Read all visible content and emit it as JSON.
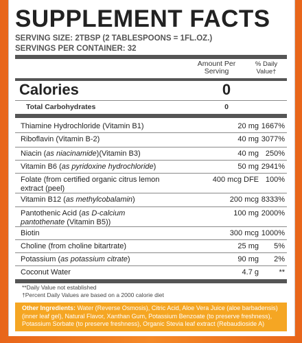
{
  "panel": {
    "title": "SUPPLEMENT FACTS",
    "serving_size": "SERVING SIZE: 2TBSP (2 TABLESPOONS = 1FL.OZ.)",
    "servings_per_container": "SERVINGS PER CONTAINER: 32",
    "header_amount": "Amount Per Serving",
    "header_dv": "% Daily Value†",
    "calories_label": "Calories",
    "calories_value": "0",
    "carbs_label": "Total Carbohydrates",
    "carbs_value": "0"
  },
  "nutrients": [
    {
      "name": "Thiamine Hydrochloride (Vitamin B1)",
      "note": "",
      "suffix": "",
      "amount": "20 mg",
      "dv": "1667%"
    },
    {
      "name": "Riboflavin (Vitamin B-2)",
      "note": "",
      "suffix": "",
      "amount": "40 mg",
      "dv": "3077%"
    },
    {
      "name": "Niacin (",
      "note": "as niacinamide",
      "suffix": ")(Vitamin B3)",
      "amount": "40 mg",
      "dv": "250%"
    },
    {
      "name": "Vitamin B6 (",
      "note": "as pyridoxine hydrochloride",
      "suffix": ")",
      "amount": "50 mg",
      "dv": "2941%"
    },
    {
      "name": "Folate (from certified organic citrus lemon extract (peel)",
      "note": "",
      "suffix": "",
      "amount": "400 mcg DFE",
      "dv": "100%"
    },
    {
      "name": "Vitamin B12 (",
      "note": "as methylcobalamin",
      "suffix": ")",
      "amount": "200 mcg",
      "dv": "8333%"
    },
    {
      "name": "Pantothenic Acid (",
      "note": "as D-calcium pantothenate",
      "suffix": " (Vitamin B5))",
      "amount": "100 mg",
      "dv": "2000%"
    },
    {
      "name": "Biotin",
      "note": "",
      "suffix": "",
      "amount": "300 mcg",
      "dv": "1000%"
    },
    {
      "name": "Choline (from choline bitartrate)",
      "note": "",
      "suffix": "",
      "amount": "25 mg",
      "dv": "5%"
    },
    {
      "name": "Potassium (",
      "note": "as potassium citrate",
      "suffix": ")",
      "amount": "90 mg",
      "dv": "2%"
    },
    {
      "name": "Coconut Water",
      "note": "",
      "suffix": "",
      "amount": "4.7 g",
      "dv": "**"
    }
  ],
  "footnotes": {
    "dv_not_established": "**Daily Value not established",
    "dv_basis": "†Percent Daily Values are based on a 2000 calorie diet"
  },
  "ingredients": {
    "label": "Other Ingredients:",
    "text": " Water (Reverse Osmosis), Citric Acid, Aloe Vera Juice (aloe barbadensis) (inner leaf gel), Natural Flavor, Xanthan Gum, Potassium Benzoate (to preserve freshness), Potassium Sorbate (to preserve freshness), Organic Stevia leaf extract (Rebaudioside A)"
  },
  "colors": {
    "frame": "#f47a20",
    "ingredients_bg": "#f5a623",
    "rule": "#555555"
  }
}
